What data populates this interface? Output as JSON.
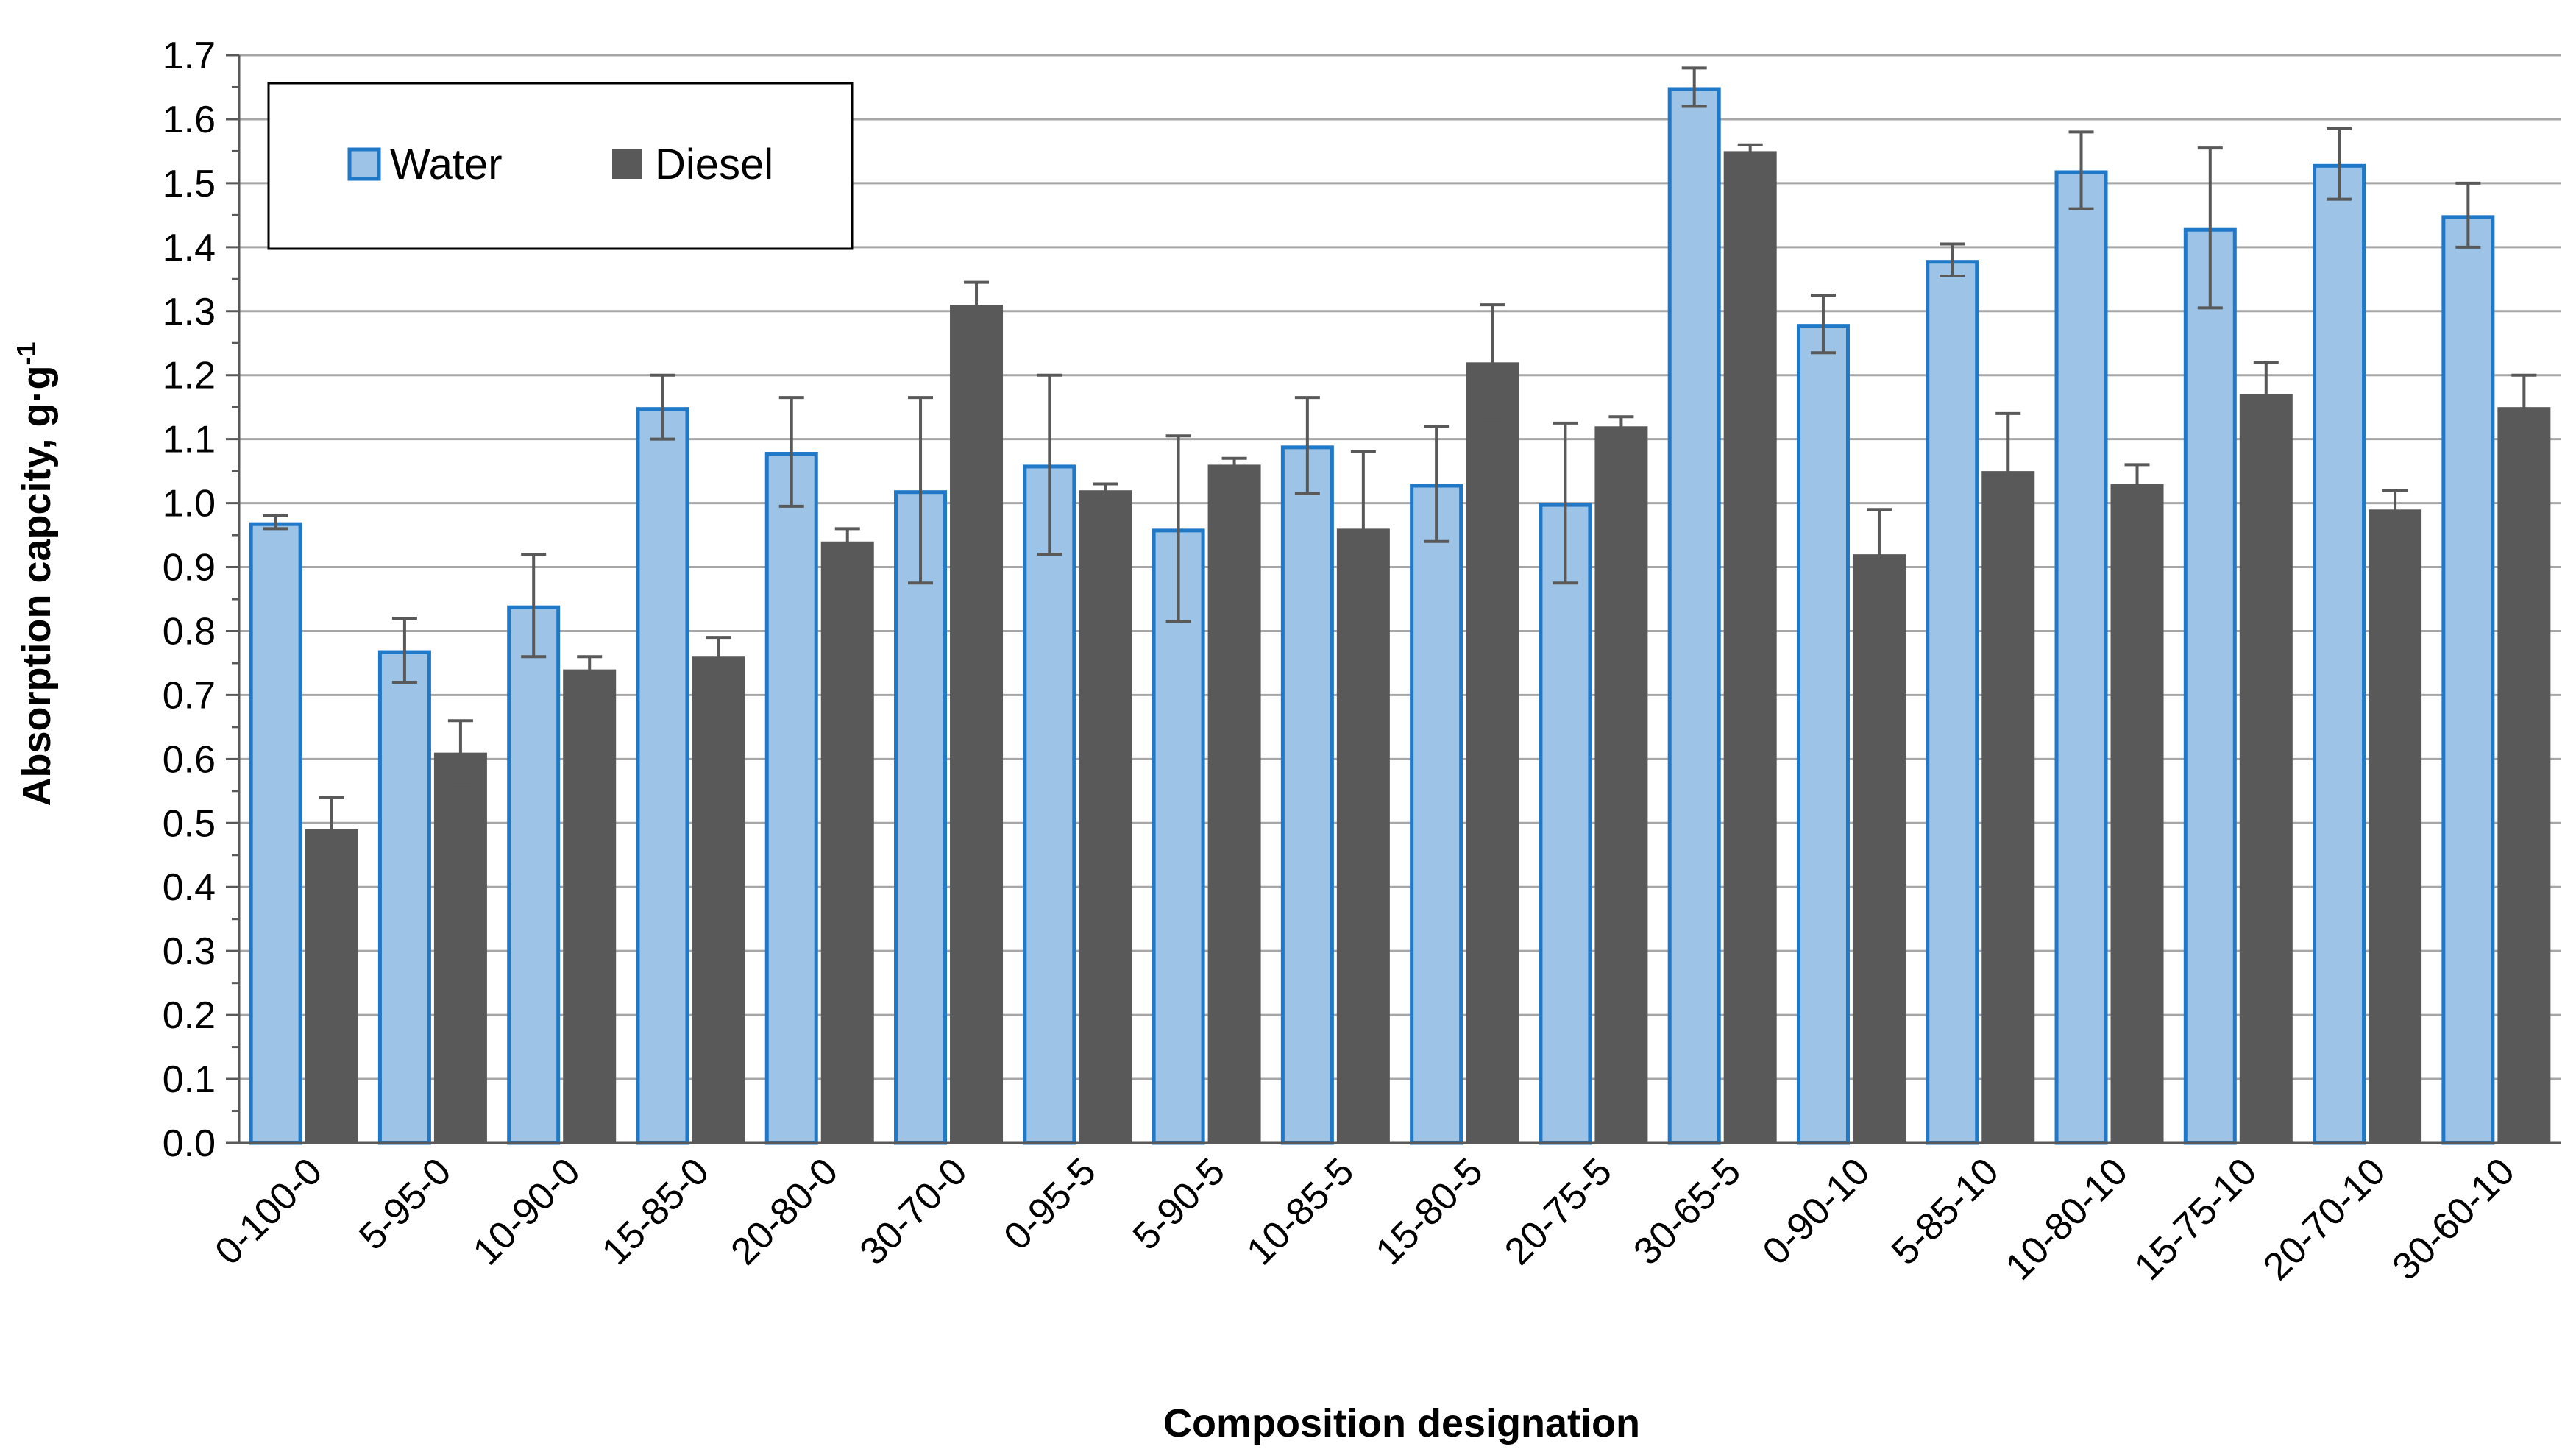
{
  "chart_data": {
    "type": "bar",
    "title": "",
    "xlabel": "Composition designation",
    "ylabel": "Absorption capcity, g·g",
    "ylabel_superscript": "-1",
    "ylim": [
      0,
      1.7
    ],
    "ytick_step": 0.1,
    "grid": "horizontal",
    "legend_position": "top-left",
    "categories": [
      "0-100-0",
      "5-95-0",
      "10-90-0",
      "15-85-0",
      "20-80-0",
      "30-70-0",
      "0-95-5",
      "5-90-5",
      "10-85-5",
      "15-80-5",
      "20-75-5",
      "30-65-5",
      "0-90-10",
      "5-85-10",
      "10-80-10",
      "15-75-10",
      "20-70-10",
      "30-60-10"
    ],
    "series": [
      {
        "name": "Water",
        "color": "#9DC3E6",
        "edge_color": "#1F78C8",
        "values": [
          0.97,
          0.77,
          0.84,
          1.15,
          1.08,
          1.02,
          1.06,
          0.96,
          1.09,
          1.03,
          1.0,
          1.65,
          1.28,
          1.38,
          1.52,
          1.43,
          1.53,
          1.45
        ],
        "errors": [
          0.01,
          0.05,
          0.08,
          0.05,
          0.085,
          0.145,
          0.14,
          0.145,
          0.075,
          0.09,
          0.125,
          0.03,
          0.045,
          0.025,
          0.06,
          0.125,
          0.055,
          0.05
        ]
      },
      {
        "name": "Diesel",
        "color": "#595959",
        "edge_color": "#595959",
        "values": [
          0.49,
          0.61,
          0.74,
          0.76,
          0.94,
          1.31,
          1.02,
          1.06,
          0.96,
          1.22,
          1.12,
          1.55,
          0.92,
          1.05,
          1.03,
          1.17,
          0.99,
          1.15
        ],
        "errors": [
          0.05,
          0.05,
          0.02,
          0.03,
          0.02,
          0.035,
          0.01,
          0.01,
          0.12,
          0.09,
          0.015,
          0.01,
          0.07,
          0.09,
          0.03,
          0.05,
          0.03,
          0.05
        ]
      }
    ]
  }
}
